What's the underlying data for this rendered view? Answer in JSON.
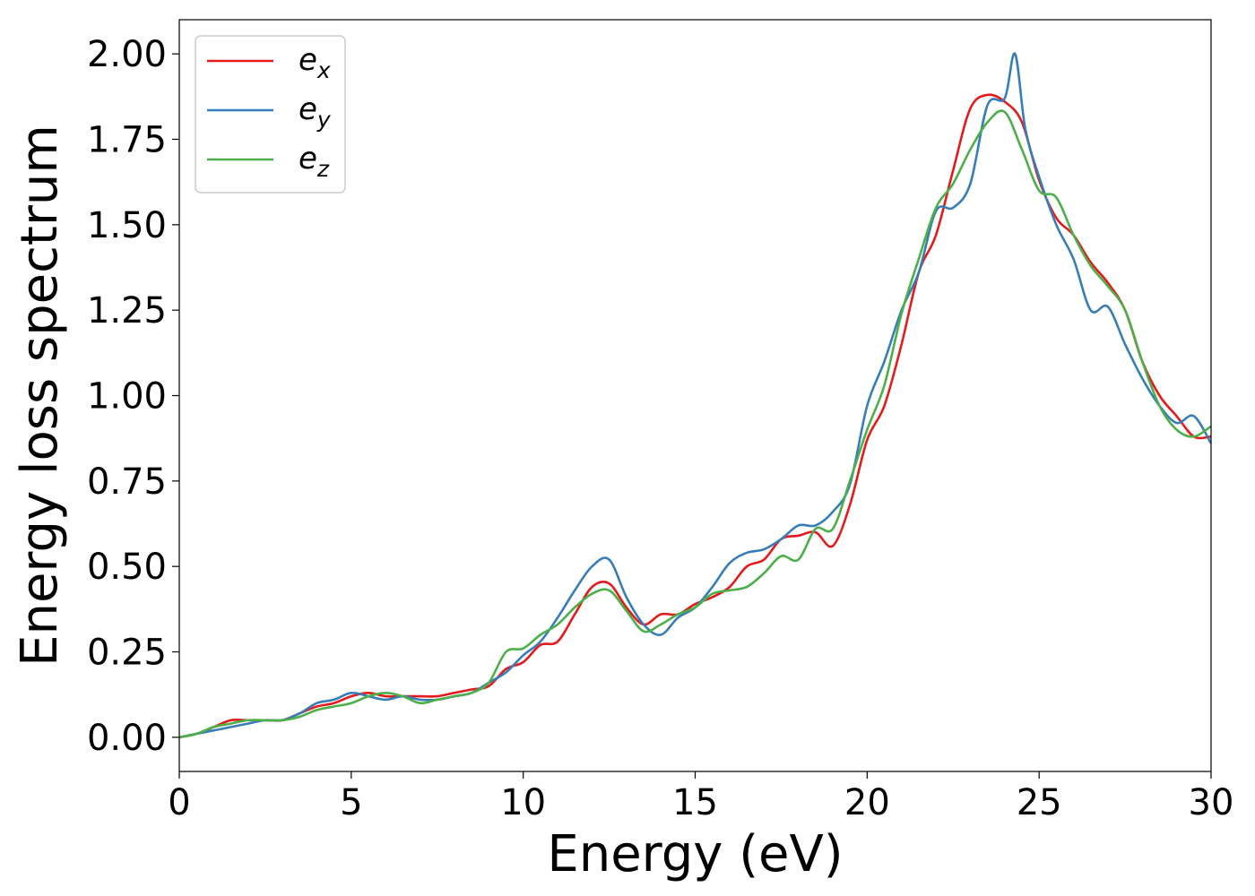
{
  "chart_data": {
    "type": "line",
    "title": "",
    "xlabel": "Energy (eV)",
    "ylabel": "Energy loss spectrum",
    "xlim": [
      0,
      30
    ],
    "ylim": [
      -0.1,
      2.1
    ],
    "xticks": [
      0,
      5,
      10,
      15,
      20,
      25,
      30
    ],
    "xtick_labels": [
      "0",
      "5",
      "10",
      "15",
      "20",
      "25",
      "30"
    ],
    "yticks": [
      0.0,
      0.25,
      0.5,
      0.75,
      1.0,
      1.25,
      1.5,
      1.75,
      2.0
    ],
    "ytick_labels": [
      "0.00",
      "0.25",
      "0.50",
      "0.75",
      "1.00",
      "1.25",
      "1.50",
      "1.75",
      "2.00"
    ],
    "grid": false,
    "legend_position": "top-left",
    "series": [
      {
        "name": "e_x",
        "label_base": "e",
        "label_sub": "x",
        "color": "#e41a1c",
        "x": [
          0,
          0.5,
          1,
          1.5,
          2,
          2.5,
          3,
          3.5,
          4,
          4.5,
          5,
          5.5,
          6,
          6.5,
          7,
          7.5,
          8,
          8.5,
          9,
          9.5,
          10,
          10.5,
          11,
          11.5,
          12,
          12.5,
          13,
          13.5,
          14,
          14.5,
          15,
          15.5,
          16,
          16.5,
          17,
          17.5,
          18,
          18.5,
          19,
          19.5,
          20,
          20.5,
          21,
          21.5,
          22,
          22.5,
          23,
          23.5,
          24,
          24.5,
          25,
          25.5,
          26,
          26.5,
          27,
          27.5,
          28,
          28.5,
          29,
          29.5,
          30
        ],
        "y": [
          0.0,
          0.01,
          0.03,
          0.05,
          0.05,
          0.05,
          0.05,
          0.07,
          0.09,
          0.1,
          0.12,
          0.13,
          0.12,
          0.12,
          0.12,
          0.12,
          0.13,
          0.14,
          0.15,
          0.2,
          0.22,
          0.27,
          0.28,
          0.36,
          0.44,
          0.45,
          0.38,
          0.33,
          0.36,
          0.36,
          0.39,
          0.41,
          0.44,
          0.5,
          0.52,
          0.58,
          0.59,
          0.6,
          0.56,
          0.68,
          0.87,
          0.97,
          1.15,
          1.36,
          1.47,
          1.66,
          1.84,
          1.88,
          1.86,
          1.8,
          1.63,
          1.52,
          1.47,
          1.39,
          1.33,
          1.25,
          1.1,
          1.0,
          0.94,
          0.88,
          0.88
        ]
      },
      {
        "name": "e_y",
        "label_base": "e",
        "label_sub": "y",
        "color": "#377eb8",
        "x": [
          0,
          0.5,
          1,
          1.5,
          2,
          2.5,
          3,
          3.5,
          4,
          4.5,
          5,
          5.5,
          6,
          6.5,
          7,
          7.5,
          8,
          8.5,
          9,
          9.5,
          10,
          10.5,
          11,
          11.5,
          12,
          12.5,
          13,
          13.5,
          14,
          14.5,
          15,
          15.5,
          16,
          16.5,
          17,
          17.5,
          18,
          18.5,
          19,
          19.5,
          20,
          20.5,
          21,
          21.5,
          22,
          22.5,
          23,
          23.5,
          24,
          24.3,
          24.6,
          25,
          25.5,
          26,
          26.5,
          27,
          27.5,
          28,
          28.5,
          29,
          29.5,
          30
        ],
        "y": [
          0.0,
          0.01,
          0.02,
          0.03,
          0.04,
          0.05,
          0.05,
          0.07,
          0.1,
          0.11,
          0.13,
          0.12,
          0.11,
          0.12,
          0.11,
          0.11,
          0.12,
          0.13,
          0.16,
          0.19,
          0.24,
          0.28,
          0.35,
          0.43,
          0.5,
          0.52,
          0.41,
          0.33,
          0.3,
          0.35,
          0.38,
          0.44,
          0.51,
          0.54,
          0.55,
          0.58,
          0.62,
          0.62,
          0.66,
          0.74,
          0.97,
          1.1,
          1.25,
          1.36,
          1.54,
          1.55,
          1.62,
          1.85,
          1.87,
          2.0,
          1.78,
          1.64,
          1.5,
          1.4,
          1.25,
          1.26,
          1.15,
          1.05,
          0.97,
          0.92,
          0.94,
          0.86
        ]
      },
      {
        "name": "e_z",
        "label_base": "e",
        "label_sub": "z",
        "color": "#4daf4a",
        "x": [
          0,
          0.5,
          1,
          1.5,
          2,
          2.5,
          3,
          3.5,
          4,
          4.5,
          5,
          5.5,
          6,
          6.5,
          7,
          7.5,
          8,
          8.5,
          9,
          9.5,
          10,
          10.5,
          11,
          11.5,
          12,
          12.5,
          13,
          13.5,
          14,
          14.5,
          15,
          15.5,
          16,
          16.5,
          17,
          17.5,
          18,
          18.5,
          19,
          19.5,
          20,
          20.5,
          21,
          21.5,
          22,
          22.5,
          23,
          23.5,
          24,
          24.5,
          25,
          25.5,
          26,
          26.5,
          27,
          27.5,
          28,
          28.5,
          29,
          29.5,
          30
        ],
        "y": [
          0.0,
          0.01,
          0.03,
          0.04,
          0.05,
          0.05,
          0.05,
          0.06,
          0.08,
          0.09,
          0.1,
          0.12,
          0.13,
          0.12,
          0.1,
          0.11,
          0.12,
          0.13,
          0.16,
          0.25,
          0.26,
          0.3,
          0.33,
          0.38,
          0.42,
          0.43,
          0.37,
          0.31,
          0.33,
          0.36,
          0.38,
          0.42,
          0.43,
          0.44,
          0.48,
          0.53,
          0.52,
          0.61,
          0.61,
          0.75,
          0.9,
          1.03,
          1.24,
          1.4,
          1.55,
          1.62,
          1.72,
          1.8,
          1.83,
          1.72,
          1.6,
          1.58,
          1.47,
          1.38,
          1.32,
          1.25,
          1.1,
          0.97,
          0.9,
          0.88,
          0.91
        ]
      }
    ]
  }
}
